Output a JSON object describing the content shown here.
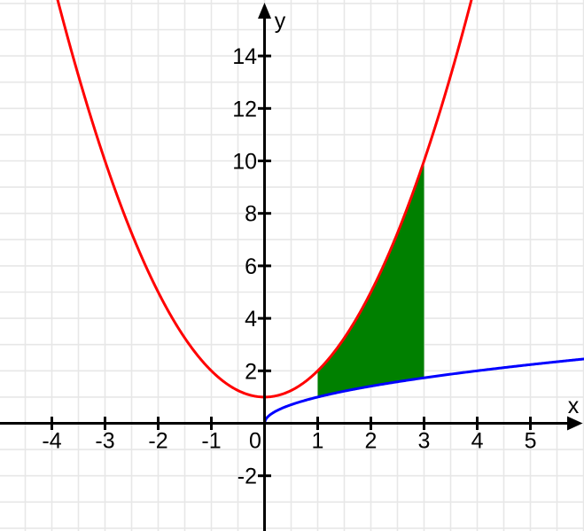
{
  "chart_data": {
    "type": "line",
    "title": "",
    "xlabel": "x",
    "ylabel": "y",
    "xlim": [
      -4.975,
      6.008
    ],
    "ylim": [
      -4.105,
      16.132
    ],
    "x_ticks": [
      -4,
      -3,
      -2,
      -1,
      0,
      1,
      2,
      3,
      4,
      5
    ],
    "y_ticks": [
      -2,
      2,
      4,
      6,
      8,
      10,
      12,
      14
    ],
    "origin_label": "0",
    "grid": {
      "show": true,
      "x_step": 0.5,
      "y_step": 1,
      "color": "#e7e7e7"
    },
    "axis_color": "#000000",
    "background": "#ffffff",
    "series": [
      {
        "id": "parabola",
        "formula": "y = x^2 + 1",
        "fn": "x*x+1",
        "color": "#ff0000",
        "width": 3,
        "x_range": [
          -4.2,
          4.2
        ],
        "key_points": [
          [
            -3,
            10
          ],
          [
            -2,
            5
          ],
          [
            -1,
            2
          ],
          [
            0,
            1
          ],
          [
            1,
            2
          ],
          [
            2,
            5
          ],
          [
            3,
            10
          ]
        ]
      },
      {
        "id": "square-root",
        "formula": "y = sqrt(x)",
        "fn": "Math.sqrt(x)",
        "color": "#0000ff",
        "width": 3,
        "x_range": [
          0,
          6.05
        ],
        "key_points": [
          [
            0,
            0
          ],
          [
            1,
            1
          ],
          [
            4,
            2
          ],
          [
            6,
            2.449
          ]
        ]
      }
    ],
    "shaded_region": {
      "upper_fn": "x*x+1",
      "lower_fn": "Math.sqrt(x)",
      "from_x": 1,
      "to_x": 3,
      "color": "#008000"
    }
  }
}
